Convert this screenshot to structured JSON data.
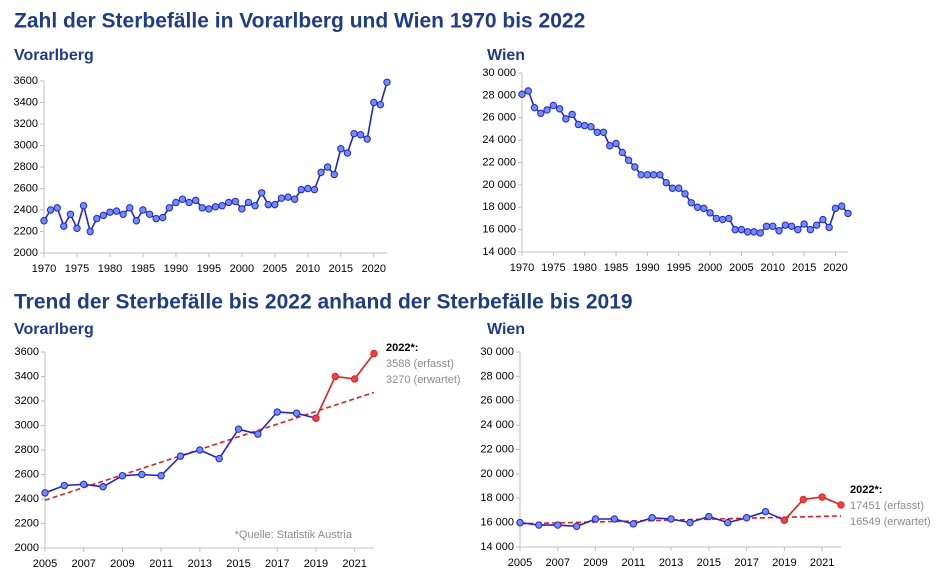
{
  "headings": [
    "Zahl der Sterbefälle in Vorarlberg und Wien 1970 bis 2022",
    "Trend der Sterbefälle bis 2022 anhand der Sterbefälle bis 2019"
  ],
  "chart_data": [
    {
      "type": "line",
      "title": "Vorarlberg",
      "x": [
        1970,
        1971,
        1972,
        1973,
        1974,
        1975,
        1976,
        1977,
        1978,
        1979,
        1980,
        1981,
        1982,
        1983,
        1984,
        1985,
        1986,
        1987,
        1988,
        1989,
        1990,
        1991,
        1992,
        1993,
        1994,
        1995,
        1996,
        1997,
        1998,
        1999,
        2000,
        2001,
        2002,
        2003,
        2004,
        2005,
        2006,
        2007,
        2008,
        2009,
        2010,
        2011,
        2012,
        2013,
        2014,
        2015,
        2016,
        2017,
        2018,
        2019,
        2020,
        2021,
        2022
      ],
      "series": [
        {
          "color": "#2323d6",
          "marker_color": "#6f8ff0",
          "markers": true,
          "values": [
            2300,
            2400,
            2420,
            2250,
            2360,
            2230,
            2440,
            2200,
            2320,
            2350,
            2380,
            2390,
            2360,
            2420,
            2300,
            2400,
            2360,
            2320,
            2330,
            2420,
            2470,
            2500,
            2470,
            2490,
            2420,
            2410,
            2430,
            2440,
            2470,
            2480,
            2410,
            2470,
            2440,
            2560,
            2450,
            2450,
            2510,
            2520,
            2500,
            2590,
            2600,
            2590,
            2750,
            2800,
            2730,
            2970,
            2930,
            3110,
            3100,
            3060,
            3400,
            3380,
            3588
          ]
        }
      ],
      "xlim": [
        1970,
        2022
      ],
      "xticks": [
        1970,
        1975,
        1980,
        1985,
        1990,
        1995,
        2000,
        2005,
        2010,
        2015,
        2020
      ],
      "ylim": [
        2000,
        3600
      ],
      "yticks": [
        2000,
        2200,
        2400,
        2600,
        2800,
        3000,
        3200,
        3400,
        3600
      ]
    },
    {
      "type": "line",
      "title": "Wien",
      "x": [
        1970,
        1971,
        1972,
        1973,
        1974,
        1975,
        1976,
        1977,
        1978,
        1979,
        1980,
        1981,
        1982,
        1983,
        1984,
        1985,
        1986,
        1987,
        1988,
        1989,
        1990,
        1991,
        1992,
        1993,
        1994,
        1995,
        1996,
        1997,
        1998,
        1999,
        2000,
        2001,
        2002,
        2003,
        2004,
        2005,
        2006,
        2007,
        2008,
        2009,
        2010,
        2011,
        2012,
        2013,
        2014,
        2015,
        2016,
        2017,
        2018,
        2019,
        2020,
        2021,
        2022
      ],
      "series": [
        {
          "color": "#2323d6",
          "marker_color": "#6f8ff0",
          "markers": true,
          "values": [
            28100,
            28400,
            26900,
            26400,
            26700,
            27100,
            26800,
            25900,
            26300,
            25400,
            25300,
            25200,
            24700,
            24700,
            23500,
            23700,
            22900,
            22200,
            21600,
            20900,
            20900,
            20900,
            20900,
            20200,
            19700,
            19700,
            19200,
            18400,
            18000,
            17900,
            17500,
            17000,
            16900,
            17000,
            16000,
            16000,
            15800,
            15800,
            15700,
            16300,
            16300,
            15900,
            16400,
            16300,
            16000,
            16500,
            16000,
            16400,
            16900,
            16200,
            17900,
            18100,
            17451
          ]
        }
      ],
      "xlim": [
        1970,
        2022
      ],
      "xticks": [
        1970,
        1975,
        1980,
        1985,
        1990,
        1995,
        2000,
        2005,
        2010,
        2015,
        2020
      ],
      "ylim": [
        14000,
        30000
      ],
      "yticks": [
        {
          "value": 14000,
          "label": "14 000"
        },
        {
          "value": 16000,
          "label": "16 000"
        },
        {
          "value": 18000,
          "label": "18 000"
        },
        {
          "value": 20000,
          "label": "20 000"
        },
        {
          "value": 22000,
          "label": "22 000"
        },
        {
          "value": 24000,
          "label": "24 000"
        },
        {
          "value": 26000,
          "label": "26 000"
        },
        {
          "value": 28000,
          "label": "28 000"
        },
        {
          "value": 30000,
          "label": "30 000"
        }
      ]
    },
    {
      "type": "line",
      "title": "Vorarlberg",
      "series": [
        {
          "color": "#e02020",
          "dash": true,
          "x": [
            2005,
            2022
          ],
          "values": [
            2390,
            3270
          ]
        },
        {
          "color": "#2323d6",
          "marker_color": "#6f8ff0",
          "markers": true,
          "x": [
            2005,
            2006,
            2007,
            2008,
            2009,
            2010,
            2011,
            2012,
            2013,
            2014,
            2015,
            2016,
            2017,
            2018,
            2019
          ],
          "values": [
            2450,
            2510,
            2520,
            2500,
            2590,
            2600,
            2590,
            2750,
            2800,
            2730,
            2970,
            2930,
            3110,
            3100,
            3060
          ]
        },
        {
          "color": "#e02020",
          "marker_color": "#f04040",
          "markers": true,
          "x": [
            2019,
            2020,
            2021,
            2022
          ],
          "values": [
            3060,
            3400,
            3380,
            3588
          ]
        }
      ],
      "xlim": [
        2005,
        2022
      ],
      "xticks": [
        2005,
        2007,
        2009,
        2011,
        2013,
        2015,
        2017,
        2019,
        2021
      ],
      "ylim": [
        2000,
        3600
      ],
      "yticks": [
        2000,
        2200,
        2400,
        2600,
        2800,
        3000,
        3200,
        3400,
        3600
      ],
      "annotations": [
        "2022*:",
        "3588 (erfasst)",
        "3270 (erwartet)"
      ],
      "note": "*Quelle: Statistik Austria"
    },
    {
      "type": "line",
      "title": "Wien",
      "series": [
        {
          "color": "#e02020",
          "dash": true,
          "x": [
            2005,
            2022
          ],
          "values": [
            15900,
            16549
          ]
        },
        {
          "color": "#2323d6",
          "marker_color": "#6f8ff0",
          "markers": true,
          "x": [
            2005,
            2006,
            2007,
            2008,
            2009,
            2010,
            2011,
            2012,
            2013,
            2014,
            2015,
            2016,
            2017,
            2018,
            2019
          ],
          "values": [
            16000,
            15800,
            15800,
            15700,
            16300,
            16300,
            15900,
            16400,
            16300,
            16000,
            16500,
            16000,
            16400,
            16900,
            16200
          ]
        },
        {
          "color": "#e02020",
          "marker_color": "#f04040",
          "markers": true,
          "x": [
            2019,
            2020,
            2021,
            2022
          ],
          "values": [
            16200,
            17900,
            18100,
            17451
          ]
        }
      ],
      "xlim": [
        2005,
        2022
      ],
      "xticks": [
        2005,
        2007,
        2009,
        2011,
        2013,
        2015,
        2017,
        2019,
        2021
      ],
      "ylim": [
        14000,
        30000
      ],
      "yticks": [
        {
          "value": 14000,
          "label": "14 000"
        },
        {
          "value": 16000,
          "label": "16 000"
        },
        {
          "value": 18000,
          "label": "18 000"
        },
        {
          "value": 20000,
          "label": "20 000"
        },
        {
          "value": 22000,
          "label": "22 000"
        },
        {
          "value": 24000,
          "label": "24 000"
        },
        {
          "value": 26000,
          "label": "26 000"
        },
        {
          "value": 28000,
          "label": "28 000"
        },
        {
          "value": 30000,
          "label": "30 000"
        }
      ],
      "annotations": [
        "2022*:",
        "17451 (erfasst)",
        "16549 (erwartet)"
      ]
    }
  ]
}
